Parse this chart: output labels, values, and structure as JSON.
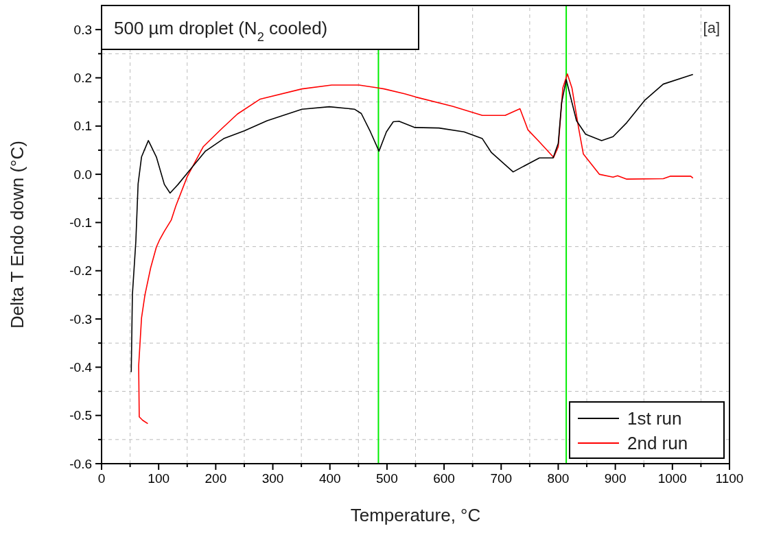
{
  "chart_data": {
    "type": "line",
    "title": "500 µm droplet (N$_{2}$ cooled)",
    "xlabel": "Temperature, °C",
    "ylabel": "Delta T Endo down (°C)",
    "annotations": [
      "[a]"
    ],
    "xlim": [
      0,
      1100
    ],
    "ylim": [
      -0.6,
      0.35
    ],
    "xticks": [
      0,
      {
        "value": 50,
        "label": null
      },
      100,
      {
        "value": 150,
        "label": null
      },
      200,
      {
        "value": 250,
        "label": null
      },
      300,
      {
        "value": 350,
        "label": null
      },
      400,
      {
        "value": 450,
        "label": null
      },
      500,
      {
        "value": 550,
        "label": null
      },
      600,
      {
        "value": 650,
        "label": null
      },
      700,
      {
        "value": 750,
        "label": null
      },
      800,
      {
        "value": 850,
        "label": null
      },
      900,
      {
        "value": 950,
        "label": null
      },
      1000,
      {
        "value": 1050,
        "label": null
      },
      1100
    ],
    "yticks": [
      -0.6,
      {
        "value": -0.55,
        "label": null
      },
      -0.5,
      {
        "value": -0.45,
        "label": null
      },
      -0.4,
      {
        "value": -0.35,
        "label": null
      },
      -0.3,
      {
        "value": -0.25,
        "label": null
      },
      -0.2,
      {
        "value": -0.15,
        "label": null
      },
      -0.1,
      {
        "value": -0.05,
        "label": null
      },
      {
        "value": 0,
        "label": "0.0"
      },
      {
        "value": 0.05,
        "label": null
      },
      0.1,
      {
        "value": 0.15,
        "label": null
      },
      0.2,
      {
        "value": 0.25,
        "label": null
      },
      0.3
    ],
    "grid": true,
    "legend": "bottom right",
    "line_style": "solid",
    "ref_lines": [
      {
        "axis": "x",
        "value": 485,
        "color": "#00ee00"
      },
      {
        "axis": "x",
        "value": 814,
        "color": "#00ee00"
      }
    ],
    "series": [
      {
        "name": "1st run",
        "color": "#000000",
        "x": [
          52,
          54,
          60,
          64,
          70,
          82,
          96,
          110,
          120,
          134,
          154,
          182,
          214,
          250,
          290,
          351,
          399,
          443,
          455,
          471,
          486,
          499,
          511,
          521,
          549,
          591,
          635,
          667,
          683,
          721,
          767,
          791,
          800,
          806,
          814,
          820,
          832,
          848,
          876,
          896,
          920,
          952,
          984,
          1036
        ],
        "values": [
          -0.41,
          -0.25,
          -0.14,
          -0.02,
          0.036,
          0.07,
          0.036,
          -0.021,
          -0.039,
          -0.021,
          0.008,
          0.048,
          0.074,
          0.09,
          0.111,
          0.135,
          0.14,
          0.135,
          0.126,
          0.088,
          0.048,
          0.088,
          0.109,
          0.11,
          0.097,
          0.096,
          0.088,
          0.074,
          0.045,
          0.005,
          0.034,
          0.034,
          0.064,
          0.149,
          0.196,
          0.168,
          0.111,
          0.083,
          0.07,
          0.078,
          0.107,
          0.154,
          0.187,
          0.207
        ]
      },
      {
        "name": "2nd run",
        "color": "#ff0000",
        "x": [
          81,
          72,
          66,
          65,
          70,
          76,
          86,
          96,
          102,
          110,
          122,
          130,
          150,
          178,
          210,
          238,
          278,
          351,
          403,
          451,
          485,
          495,
          531,
          551,
          615,
          667,
          707,
          733,
          747,
          768,
          792,
          800,
          808,
          816,
          824,
          836,
          844,
          872,
          896,
          904,
          920,
          984,
          996,
          1032,
          1036
        ],
        "values": [
          -0.517,
          -0.51,
          -0.503,
          -0.397,
          -0.298,
          -0.25,
          -0.194,
          -0.151,
          -0.135,
          -0.118,
          -0.095,
          -0.066,
          -0.005,
          0.057,
          0.094,
          0.125,
          0.156,
          0.177,
          0.185,
          0.185,
          0.179,
          0.177,
          0.167,
          0.16,
          0.141,
          0.122,
          0.122,
          0.136,
          0.092,
          0.066,
          0.035,
          0.057,
          0.179,
          0.208,
          0.179,
          0.094,
          0.042,
          0.0,
          -0.006,
          -0.003,
          -0.01,
          -0.009,
          -0.004,
          -0.004,
          -0.008
        ]
      }
    ]
  }
}
